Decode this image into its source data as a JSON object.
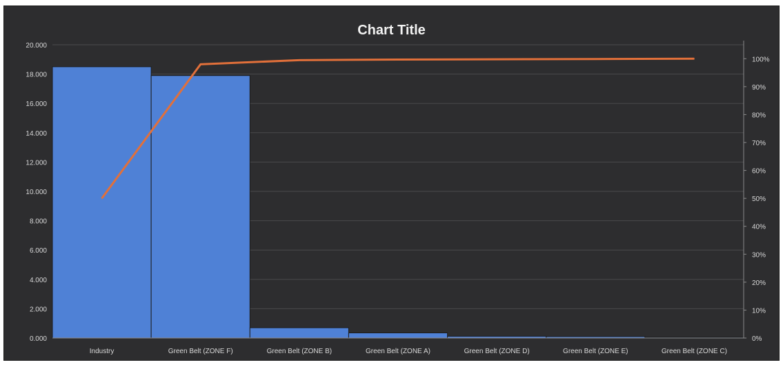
{
  "chart_data": {
    "type": "bar",
    "title": "Chart Title",
    "categories": [
      "Industry",
      "Green Belt (ZONE F)",
      "Green Belt (ZONE B)",
      "Green Belt (ZONE A)",
      "Green Belt (ZONE D)",
      "Green Belt (ZONE E)",
      "Green Belt (ZONE C)"
    ],
    "series": [
      {
        "type": "bar",
        "axis": "left",
        "values": [
          18.5,
          17.9,
          0.7,
          0.35,
          0.12,
          0.1,
          0.05
        ]
      },
      {
        "type": "line",
        "axis": "right",
        "values": [
          0.5,
          0.98,
          0.995,
          0.997,
          0.998,
          0.999,
          1.0
        ]
      }
    ],
    "ylim": [
      0,
      20
    ],
    "y_ticks": [
      "0.000",
      "2.000",
      "4.000",
      "6.000",
      "8.000",
      "10.000",
      "12.000",
      "14.000",
      "16.000",
      "18.000",
      "20.000"
    ],
    "y2lim": [
      0,
      1.05
    ],
    "y2_ticks": [
      "0%",
      "10%",
      "20%",
      "30%",
      "40%",
      "50%",
      "60%",
      "70%",
      "80%",
      "90%",
      "100%"
    ],
    "grid": true,
    "legend": "none",
    "colors": {
      "bar": "#4f81d6",
      "line": "#e2703a",
      "background": "#2d2d2f",
      "grid": "#4a4a4c",
      "text": "#d9d9d9"
    }
  }
}
